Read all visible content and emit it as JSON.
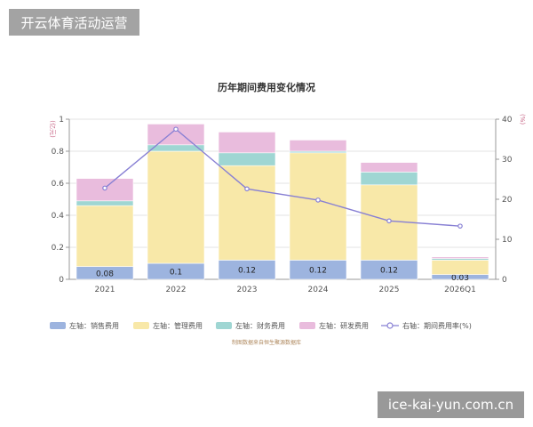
{
  "top_banner": "开云体育活动运营",
  "bottom_banner": "ice-kai-yun.com.cn",
  "source_note": "制图数据来自恒生聚源数据库",
  "colors": {
    "销售费用": "#9db4df",
    "管理费用": "#f8e8a8",
    "财务费用": "#9fd6d3",
    "研发费用": "#e9bcdd",
    "rate_line": "#8880d4"
  },
  "chart_data": {
    "type": "bar",
    "stacked": true,
    "title": "历年期间费用变化情况",
    "categories": [
      "2021",
      "2022",
      "2023",
      "2024",
      "2025",
      "2026Q1"
    ],
    "left_axis": {
      "unit": "(亿元)",
      "ylim": [
        0,
        1
      ],
      "ticks": [
        "0",
        "0.2",
        "0.4",
        "0.6",
        "0.8",
        "1"
      ]
    },
    "right_axis": {
      "unit": "(%)",
      "ylim": [
        0,
        40
      ],
      "ticks": [
        "0",
        "10",
        "20",
        "30",
        "40"
      ]
    },
    "series": [
      {
        "name": "左轴：销售费用",
        "key": "销售费用",
        "values": [
          0.08,
          0.1,
          0.12,
          0.12,
          0.12,
          0.03
        ],
        "labels": [
          "0.08",
          "0.1",
          "0.12",
          "0.12",
          "0.12",
          "0.03"
        ]
      },
      {
        "name": "左轴：管理费用",
        "key": "管理费用",
        "values": [
          0.38,
          0.7,
          0.59,
          0.67,
          0.47,
          0.09
        ]
      },
      {
        "name": "左轴：财务费用",
        "key": "财务费用",
        "values": [
          0.03,
          0.04,
          0.08,
          0.01,
          0.08,
          0.01
        ]
      },
      {
        "name": "左轴：研发费用",
        "key": "研发费用",
        "values": [
          0.14,
          0.13,
          0.13,
          0.07,
          0.06,
          0.01
        ]
      }
    ],
    "line_series": {
      "name": "右轴：期间费用率(%)",
      "axis": "right",
      "values": [
        22.8,
        37.5,
        22.6,
        19.8,
        14.6,
        13.3
      ]
    },
    "grid": true,
    "legend_position": "bottom"
  }
}
